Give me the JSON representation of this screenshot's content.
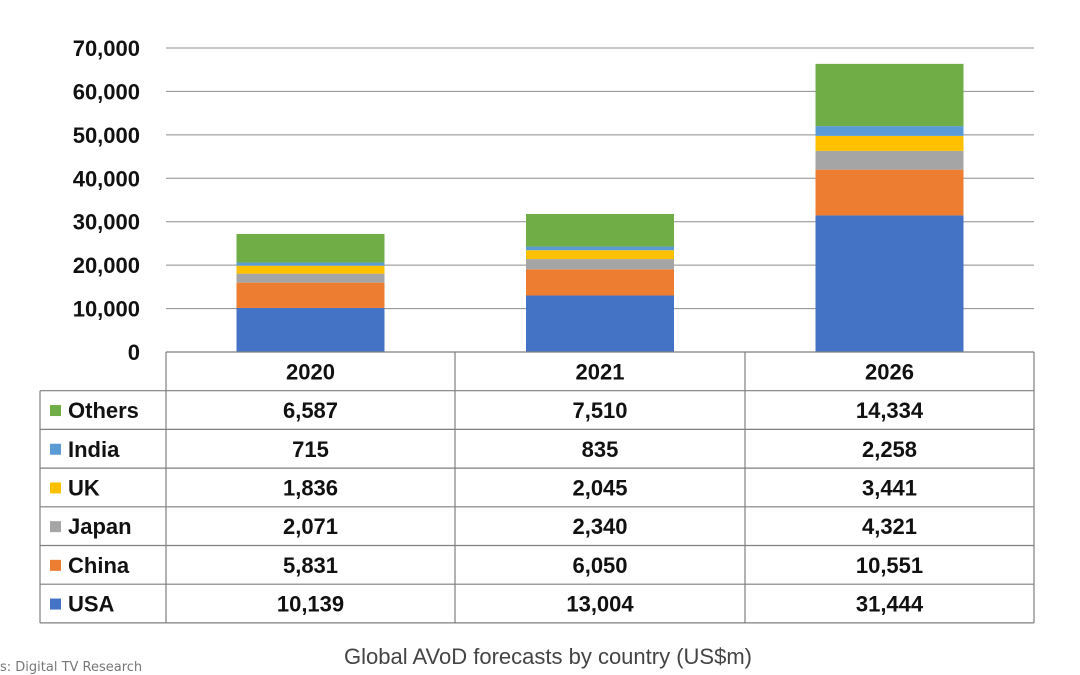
{
  "caption": "Global AVoD forecasts by country (US$m)",
  "source": "s: Digital TV Research",
  "chart_data": {
    "type": "bar",
    "stacked": true,
    "categories": [
      "2020",
      "2021",
      "2026"
    ],
    "ylim": [
      0,
      70000
    ],
    "yticks": [
      "0",
      "10,000",
      "20,000",
      "30,000",
      "40,000",
      "50,000",
      "60,000",
      "70,000"
    ],
    "ytick_values": [
      0,
      10000,
      20000,
      30000,
      40000,
      50000,
      60000,
      70000
    ],
    "grid": true,
    "legend": "data-table",
    "series": [
      {
        "name": "USA",
        "color": "#4472c4",
        "values": [
          10139,
          13004,
          31444
        ],
        "labels": [
          "10,139",
          "13,004",
          "31,444"
        ]
      },
      {
        "name": "China",
        "color": "#ed7d31",
        "values": [
          5831,
          6050,
          10551
        ],
        "labels": [
          "5,831",
          "6,050",
          "10,551"
        ]
      },
      {
        "name": "Japan",
        "color": "#a5a5a5",
        "values": [
          2071,
          2340,
          4321
        ],
        "labels": [
          "2,071",
          "2,340",
          "4,321"
        ]
      },
      {
        "name": "UK",
        "color": "#ffc000",
        "values": [
          1836,
          2045,
          3441
        ],
        "labels": [
          "1,836",
          "2,045",
          "3,441"
        ]
      },
      {
        "name": "India",
        "color": "#5b9bd5",
        "values": [
          715,
          835,
          2258
        ],
        "labels": [
          "715",
          "835",
          "2,258"
        ]
      },
      {
        "name": "Others",
        "color": "#70ad47",
        "values": [
          6587,
          7510,
          14334
        ],
        "labels": [
          "6,587",
          "7,510",
          "14,334"
        ]
      }
    ]
  }
}
